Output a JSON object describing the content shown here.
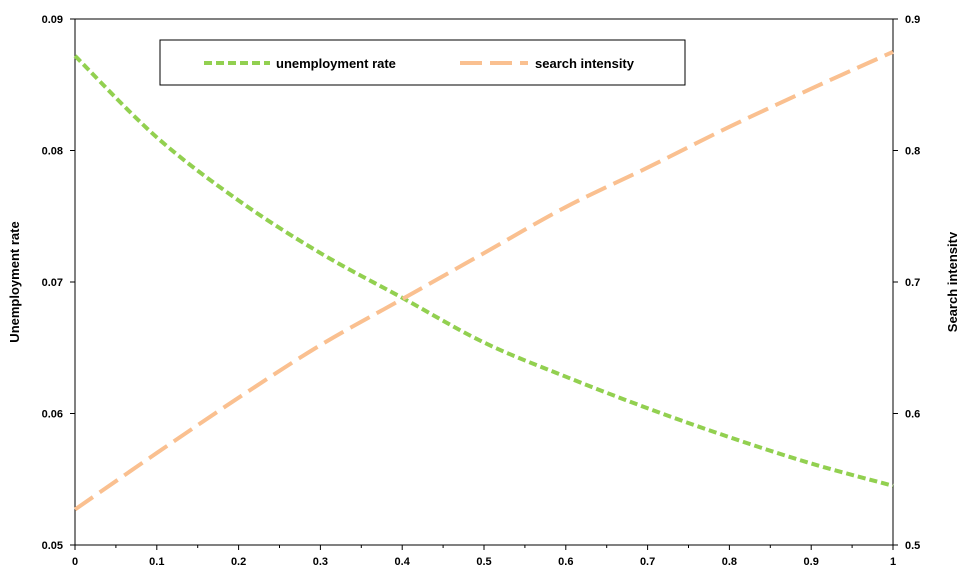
{
  "chart_data": {
    "type": "line",
    "title": "",
    "xlabel": "",
    "ylabel_left": "Unemployment rate",
    "ylabel_right": "Search intensity",
    "xlim": [
      0,
      1
    ],
    "ylim_left": [
      0.05,
      0.09
    ],
    "ylim_right": [
      0.5,
      0.9
    ],
    "x_ticks": [
      "0",
      "0.1",
      "0.2",
      "0.3",
      "0.4",
      "0.5",
      "0.6",
      "0.7",
      "0.8",
      "0.9",
      "1"
    ],
    "y_ticks_left": [
      "0.05",
      "0.06",
      "0.07",
      "0.08",
      "0.09"
    ],
    "y_ticks_right": [
      "0.5",
      "0.6",
      "0.7",
      "0.8",
      "0.9"
    ],
    "grid": false,
    "legend_position": "top-center",
    "x": [
      0,
      0.1,
      0.2,
      0.3,
      0.4,
      0.5,
      0.6,
      0.7,
      0.8,
      0.9,
      1.0
    ],
    "series": [
      {
        "name": "unemployment rate",
        "axis": "left",
        "color": "#92D050",
        "style": "short-dash",
        "values": [
          0.0872,
          0.081,
          0.0762,
          0.0722,
          0.0688,
          0.0654,
          0.0628,
          0.0604,
          0.0582,
          0.0562,
          0.0545
        ]
      },
      {
        "name": "search intensity",
        "axis": "right",
        "color": "#FAC090",
        "style": "long-dash",
        "values": [
          0.527,
          0.57,
          0.612,
          0.652,
          0.687,
          0.722,
          0.757,
          0.787,
          0.818,
          0.847,
          0.875
        ]
      }
    ]
  }
}
